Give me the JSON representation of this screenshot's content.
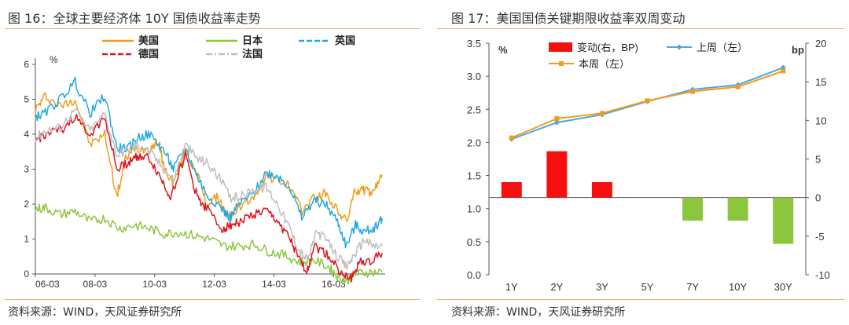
{
  "left_panel": {
    "title": "图 16：全球主要经济体 10Y 国债收益率走势",
    "source": "资料来源：WIND，天风证券研究所"
  },
  "right_panel": {
    "title": "图 17：美国国债关键期限收益率双周变动",
    "source": "资料来源：WIND，天风证券研究所"
  },
  "chart_data": [
    {
      "type": "line",
      "ylabel": "%",
      "ylim": [
        0,
        6
      ],
      "y_ticks": [
        "0",
        "1",
        "2",
        "3",
        "4",
        "5",
        "6"
      ],
      "x_ticks": [
        "06-03",
        "08-03",
        "10-03",
        "12-03",
        "14-03",
        "16-03"
      ],
      "legend_position": "top",
      "grid": false,
      "series": [
        {
          "name": "美国",
          "color": "#f39c1a",
          "dash": "solid",
          "x": [
            2006.17,
            2006.5,
            2007.0,
            2007.5,
            2008.0,
            2008.5,
            2008.9,
            2009.2,
            2009.5,
            2010.0,
            2010.3,
            2010.5,
            2010.8,
            2011.2,
            2011.6,
            2011.9,
            2012.3,
            2012.6,
            2013.0,
            2013.5,
            2013.9,
            2014.3,
            2014.7,
            2015.1,
            2015.5,
            2015.9,
            2016.3,
            2016.6,
            2016.9,
            2017.2,
            2017.5,
            2017.8
          ],
          "y": [
            4.7,
            5.1,
            4.8,
            5.0,
            3.7,
            4.0,
            2.2,
            3.3,
            3.6,
            3.6,
            3.8,
            3.0,
            2.6,
            3.5,
            2.9,
            2.0,
            2.2,
            1.6,
            1.9,
            2.2,
            2.8,
            2.7,
            2.5,
            1.8,
            2.2,
            2.3,
            1.8,
            1.5,
            2.4,
            2.4,
            2.3,
            2.85
          ]
        },
        {
          "name": "日本",
          "color": "#8cc63f",
          "dash": "solid",
          "x": [
            2006.17,
            2006.5,
            2007.0,
            2007.5,
            2008.0,
            2008.5,
            2009.0,
            2009.5,
            2010.0,
            2010.5,
            2011.0,
            2011.5,
            2012.0,
            2012.5,
            2013.0,
            2013.5,
            2014.0,
            2014.5,
            2015.0,
            2015.5,
            2016.0,
            2016.3,
            2016.6,
            2016.9,
            2017.3,
            2017.8
          ],
          "y": [
            1.85,
            1.9,
            1.7,
            1.8,
            1.5,
            1.6,
            1.3,
            1.4,
            1.3,
            1.15,
            1.2,
            1.1,
            1.0,
            0.8,
            0.8,
            0.85,
            0.65,
            0.55,
            0.35,
            0.4,
            0.2,
            -0.05,
            -0.2,
            0.0,
            0.05,
            0.05
          ]
        },
        {
          "name": "英国",
          "color": "#22a9e1",
          "dash": "dashed",
          "x": [
            2006.17,
            2006.5,
            2007.0,
            2007.5,
            2008.0,
            2008.5,
            2008.9,
            2009.3,
            2009.6,
            2010.0,
            2010.5,
            2010.8,
            2011.2,
            2011.6,
            2011.9,
            2012.4,
            2012.7,
            2013.0,
            2013.5,
            2013.9,
            2014.3,
            2014.7,
            2015.1,
            2015.5,
            2015.9,
            2016.3,
            2016.6,
            2016.9,
            2017.2,
            2017.5,
            2017.8
          ],
          "y": [
            4.5,
            4.6,
            5.0,
            5.5,
            4.6,
            5.1,
            3.6,
            3.6,
            3.9,
            4.0,
            3.5,
            3.0,
            3.6,
            2.8,
            2.3,
            1.9,
            1.6,
            2.0,
            2.3,
            2.9,
            2.8,
            2.5,
            1.6,
            2.1,
            2.0,
            1.5,
            0.8,
            1.4,
            1.2,
            1.3,
            1.6
          ]
        },
        {
          "name": "德国",
          "color": "#e0141e",
          "dash": "dashed",
          "x": [
            2006.17,
            2006.5,
            2007.0,
            2007.5,
            2008.0,
            2008.5,
            2008.9,
            2009.3,
            2009.6,
            2010.0,
            2010.4,
            2010.7,
            2011.2,
            2011.6,
            2011.9,
            2012.4,
            2012.7,
            2013.0,
            2013.5,
            2013.9,
            2014.3,
            2014.7,
            2015.0,
            2015.3,
            2015.5,
            2015.9,
            2016.3,
            2016.5,
            2016.8,
            2017.0,
            2017.4,
            2017.8
          ],
          "y": [
            3.8,
            4.0,
            4.1,
            4.5,
            4.0,
            4.5,
            3.0,
            3.2,
            3.4,
            3.3,
            2.7,
            2.2,
            3.4,
            2.2,
            1.9,
            1.3,
            1.4,
            1.5,
            1.7,
            1.8,
            1.5,
            1.0,
            0.4,
            0.1,
            0.8,
            0.6,
            0.2,
            -0.1,
            -0.1,
            0.3,
            0.4,
            0.6
          ]
        },
        {
          "name": "法国",
          "color": "#bfbfbf",
          "dash": "dashdot",
          "x": [
            2006.17,
            2006.5,
            2007.0,
            2007.5,
            2008.0,
            2008.5,
            2008.9,
            2009.3,
            2009.6,
            2010.0,
            2010.4,
            2010.8,
            2011.2,
            2011.6,
            2011.9,
            2012.3,
            2012.7,
            2013.0,
            2013.5,
            2013.9,
            2014.3,
            2014.7,
            2015.0,
            2015.3,
            2015.6,
            2015.9,
            2016.3,
            2016.6,
            2016.9,
            2017.2,
            2017.5,
            2017.8
          ],
          "y": [
            3.9,
            4.1,
            4.2,
            4.7,
            4.1,
            4.6,
            3.4,
            3.6,
            3.7,
            3.5,
            3.1,
            2.7,
            3.7,
            3.3,
            3.2,
            2.8,
            2.2,
            2.2,
            2.4,
            2.5,
            2.0,
            1.3,
            0.7,
            0.4,
            1.2,
            1.0,
            0.5,
            0.2,
            0.6,
            1.0,
            0.8,
            0.8
          ]
        }
      ]
    },
    {
      "type": "bar",
      "categories": [
        "1Y",
        "2Y",
        "3Y",
        "5Y",
        "7Y",
        "10Y",
        "30Y"
      ],
      "ylabel": "%",
      "ylim": [
        0.0,
        3.5
      ],
      "y_ticks": [
        "0.0",
        "0.5",
        "1.0",
        "1.5",
        "2.0",
        "2.5",
        "3.0",
        "3.5"
      ],
      "y2label": "bp",
      "y2lim": [
        -10,
        20
      ],
      "y2_ticks": [
        "-10",
        "-5",
        "0",
        "5",
        "10",
        "15",
        "20"
      ],
      "legend_position": "top",
      "grid": false,
      "bars": {
        "name": "变动(右，BP)",
        "axis": "right",
        "color": "#f50f0f",
        "neg_color": "#8cc63f",
        "values": [
          2,
          6,
          2,
          0,
          -3,
          -3,
          -6
        ]
      },
      "lines": [
        {
          "name": "上周（左）",
          "axis": "left",
          "color": "#4da6e3",
          "marker": "diamond",
          "values": [
            2.05,
            2.3,
            2.42,
            2.62,
            2.8,
            2.87,
            3.13
          ]
        },
        {
          "name": "本周（左）",
          "axis": "left",
          "color": "#f39c1a",
          "marker": "square",
          "values": [
            2.07,
            2.36,
            2.44,
            2.63,
            2.77,
            2.84,
            3.08
          ]
        }
      ]
    }
  ]
}
